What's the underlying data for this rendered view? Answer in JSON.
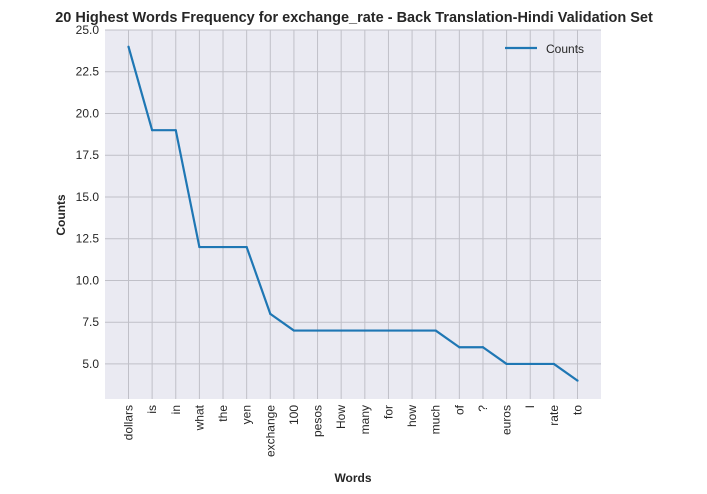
{
  "chart_data": {
    "type": "line",
    "title": "20 Highest Words Frequency for exchange_rate - Back Translation-Hindi Validation Set",
    "xlabel": "Words",
    "ylabel": "Counts",
    "categories": [
      "dollars",
      "is",
      "in",
      "what",
      "the",
      "yen",
      "exchange",
      "100",
      "pesos",
      "How",
      "many",
      "for",
      "how",
      "much",
      "of",
      "?",
      "euros",
      "I",
      "rate",
      "to"
    ],
    "series": [
      {
        "name": "Counts",
        "values": [
          24,
          19,
          19,
          12,
          12,
          12,
          8,
          7,
          7,
          7,
          7,
          7,
          7,
          7,
          6,
          6,
          5,
          5,
          5,
          4
        ]
      }
    ],
    "ylim": [
      2.9,
      25.0
    ],
    "yticks": [
      "5.0",
      "7.5",
      "10.0",
      "12.5",
      "15.0",
      "17.5",
      "20.0",
      "22.5",
      "25.0"
    ],
    "grid": true,
    "legend_position": "top-right",
    "colors": {
      "line": "#1f77b4",
      "plot_background": "#eaeaf2",
      "grid": "#c0c0c8"
    }
  }
}
